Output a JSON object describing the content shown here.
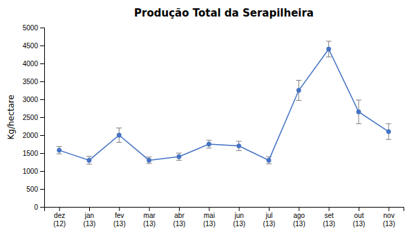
{
  "chart_data": {
    "type": "line",
    "title": "Produção Total da Serapilheira",
    "ylabel": "Kg/hectare",
    "categories": [
      "dez\n(12)",
      "jan\n(13)",
      "fev\n(13)",
      "mar\n(13)",
      "abr\n(13)",
      "mai\n(13)",
      "jun\n(13)",
      "jul\n(13)",
      "ago\n(13)",
      "set\n(13)",
      "out\n(13)",
      "nov\n(13)"
    ],
    "values": [
      1580,
      1300,
      2000,
      1300,
      1400,
      1750,
      1700,
      1300,
      3250,
      4400,
      2650,
      2100
    ],
    "errors": [
      100,
      110,
      200,
      90,
      100,
      110,
      130,
      100,
      280,
      220,
      330,
      220
    ],
    "ylim": [
      0,
      5000
    ],
    "yticks": [
      0,
      500,
      1000,
      1500,
      2000,
      2500,
      3000,
      3500,
      4000,
      4500,
      5000
    ],
    "color": "#4472C4",
    "marker": "circle",
    "grid": false
  }
}
